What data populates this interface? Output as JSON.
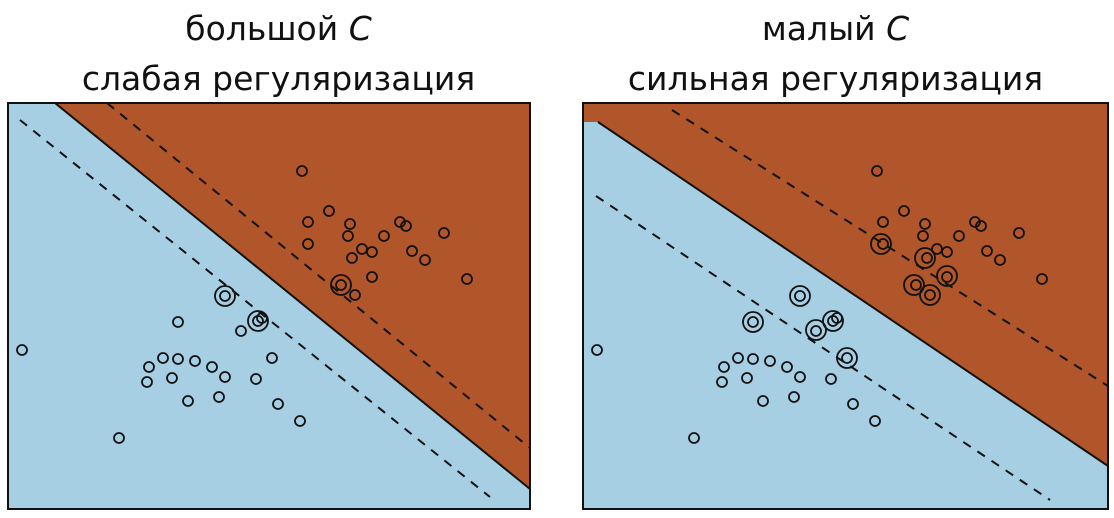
{
  "panels": [
    {
      "id": "large-c",
      "title_line1": "большой",
      "title_param": "C",
      "title_line2": "слабая регуляризация",
      "points": [
        [
          302,
          171
        ],
        [
          329,
          211
        ],
        [
          350,
          224
        ],
        [
          400,
          222
        ],
        [
          406,
          226
        ],
        [
          308,
          222
        ],
        [
          348,
          236
        ],
        [
          384,
          236
        ],
        [
          444,
          233
        ],
        [
          308,
          244
        ],
        [
          362,
          249
        ],
        [
          372,
          252
        ],
        [
          352,
          258
        ],
        [
          412,
          251
        ],
        [
          425,
          260
        ],
        [
          467,
          279
        ],
        [
          372,
          277
        ],
        [
          341,
          285
        ],
        [
          355,
          295
        ],
        [
          225,
          296
        ],
        [
          258,
          321
        ],
        [
          262,
          318
        ],
        [
          178,
          322
        ],
        [
          241,
          331
        ],
        [
          22,
          350
        ],
        [
          272,
          358
        ],
        [
          149,
          367
        ],
        [
          163,
          358
        ],
        [
          178,
          359
        ],
        [
          195,
          361
        ],
        [
          212,
          367
        ],
        [
          225,
          377
        ],
        [
          172,
          378
        ],
        [
          147,
          382
        ],
        [
          256,
          379
        ],
        [
          188,
          401
        ],
        [
          219,
          397
        ],
        [
          278,
          404
        ],
        [
          300,
          421
        ],
        [
          119,
          438
        ]
      ],
      "support_vectors": [
        [
          341,
          285
        ],
        [
          225,
          296
        ],
        [
          258,
          321
        ]
      ],
      "separator": [
        [
          55,
          103
        ],
        [
          530,
          489
        ]
      ],
      "margin_upper": [
        [
          107,
          103
        ],
        [
          530,
          448
        ]
      ],
      "margin_lower": [
        [
          20,
          120
        ],
        [
          490,
          497
        ]
      ]
    },
    {
      "id": "small-c",
      "title_line1": "малый",
      "title_param": "C",
      "title_line2": "сильная регуляризация",
      "points": [
        [
          877,
          171
        ],
        [
          904,
          211
        ],
        [
          925,
          224
        ],
        [
          975,
          222
        ],
        [
          981,
          226
        ],
        [
          883,
          222
        ],
        [
          923,
          236
        ],
        [
          959,
          236
        ],
        [
          1019,
          233
        ],
        [
          883,
          244
        ],
        [
          937,
          249
        ],
        [
          947,
          252
        ],
        [
          927,
          258
        ],
        [
          987,
          251
        ],
        [
          1000,
          260
        ],
        [
          1042,
          279
        ],
        [
          947,
          277
        ],
        [
          916,
          285
        ],
        [
          930,
          295
        ],
        [
          800,
          296
        ],
        [
          833,
          321
        ],
        [
          837,
          318
        ],
        [
          753,
          322
        ],
        [
          816,
          331
        ],
        [
          597,
          350
        ],
        [
          847,
          358
        ],
        [
          724,
          367
        ],
        [
          738,
          358
        ],
        [
          753,
          359
        ],
        [
          770,
          361
        ],
        [
          787,
          367
        ],
        [
          800,
          377
        ],
        [
          747,
          378
        ],
        [
          722,
          382
        ],
        [
          831,
          379
        ],
        [
          763,
          401
        ],
        [
          794,
          397
        ],
        [
          853,
          404
        ],
        [
          875,
          421
        ],
        [
          694,
          438
        ]
      ],
      "support_vectors": [
        [
          881,
          244
        ],
        [
          925,
          258
        ],
        [
          947,
          276
        ],
        [
          914,
          285
        ],
        [
          930,
          295
        ],
        [
          800,
          296
        ],
        [
          816,
          330
        ],
        [
          833,
          321
        ],
        [
          753,
          322
        ],
        [
          847,
          358
        ]
      ],
      "separator": [
        [
          598,
          122
        ],
        [
          1108,
          466
        ]
      ],
      "margin_upper": [
        [
          672,
          110
        ],
        [
          1108,
          386
        ]
      ],
      "margin_lower": [
        [
          596,
          196
        ],
        [
          1050,
          500
        ]
      ]
    }
  ],
  "colors": {
    "region_upper": "#b0562a",
    "region_lower": "#a7cfe3",
    "stroke": "#111111"
  }
}
